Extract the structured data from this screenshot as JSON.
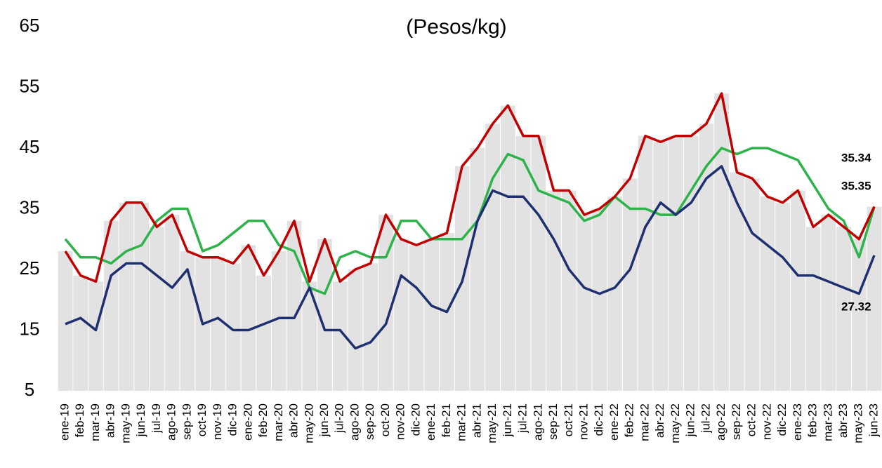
{
  "chart_data": {
    "type": "line",
    "title": "(Pesos/kg)",
    "categories": [
      "ene-19",
      "feb-19",
      "mar-19",
      "abr-19",
      "may-19",
      "jun-19",
      "jul-19",
      "ago-19",
      "sep-19",
      "oct-19",
      "nov-19",
      "dic-19",
      "ene-20",
      "feb-20",
      "mar-20",
      "abr-20",
      "may-20",
      "jun-20",
      "jul-20",
      "ago-20",
      "sep-20",
      "oct-20",
      "nov-20",
      "dic-20",
      "ene-21",
      "feb-21",
      "mar-21",
      "abr-21",
      "may-21",
      "jun-21",
      "jul-21",
      "ago-21",
      "sep-21",
      "oct-21",
      "nov-21",
      "dic-21",
      "ene-22",
      "feb-22",
      "mar-22",
      "abr-22",
      "may-22",
      "jun-22",
      "jul-22",
      "ago-22",
      "sep-22",
      "oct-22",
      "nov-22",
      "dic-22",
      "ene-23",
      "feb-23",
      "mar-23",
      "abr-23",
      "may-23",
      "jun-23"
    ],
    "series": [
      {
        "color": "#c00000",
        "values": [
          28,
          24,
          23,
          33,
          36,
          36,
          32,
          34,
          28,
          27,
          27,
          26,
          29,
          24,
          28,
          33,
          23,
          30,
          23,
          25,
          26,
          34,
          30,
          29,
          30,
          31,
          42,
          45,
          49,
          52,
          47,
          47,
          38,
          38,
          34,
          35,
          37,
          40,
          47,
          46,
          47,
          47,
          49,
          54,
          41,
          40,
          37,
          36,
          38,
          32,
          34,
          32,
          30,
          35.35
        ]
      },
      {
        "color": "#2db34a",
        "values": [
          30,
          27,
          27,
          26,
          28,
          29,
          33,
          35,
          35,
          28,
          29,
          31,
          33,
          33,
          29,
          28,
          22,
          21,
          27,
          28,
          27,
          27,
          33,
          33,
          30,
          30,
          30,
          33,
          40,
          44,
          43,
          38,
          37,
          36,
          33,
          34,
          37,
          35,
          35,
          34,
          34,
          38,
          42,
          45,
          44,
          45,
          45,
          44,
          43,
          39,
          35,
          33,
          27,
          35.34
        ]
      },
      {
        "color": "#1f3070",
        "values": [
          16,
          17,
          15,
          24,
          26,
          26,
          24,
          22,
          25,
          16,
          17,
          15,
          15,
          16,
          17,
          17,
          22,
          15,
          15,
          12,
          13,
          16,
          24,
          22,
          19,
          18,
          23,
          33,
          38,
          37,
          37,
          34,
          30,
          25,
          22,
          21,
          22,
          25,
          32,
          36,
          34,
          36,
          40,
          42,
          36,
          31,
          29,
          27,
          24,
          24,
          23,
          22,
          21,
          27.32
        ]
      }
    ],
    "bar_color": "#e2e2e2",
    "ylim": [
      5,
      65
    ],
    "yticks": [
      5,
      15,
      25,
      35,
      45,
      55,
      65
    ]
  }
}
